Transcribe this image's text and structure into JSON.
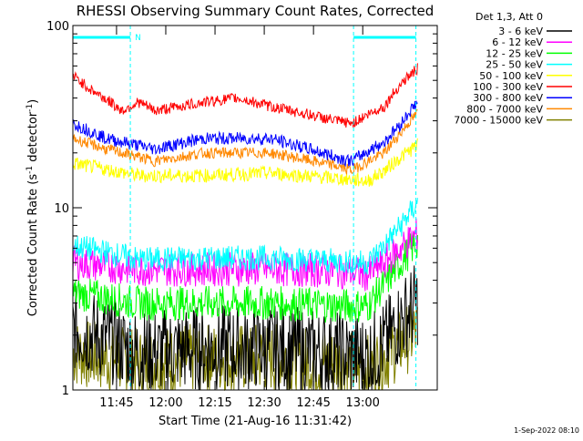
{
  "chart_data": {
    "type": "line",
    "title": "RHESSI Observing Summary Count Rates, Corrected",
    "xlabel": "Start Time (21-Aug-16 11:31:42)",
    "ylabel": "Corrected Count Rate (s",
    "ylabel_sup1": "-1",
    "ylabel_mid": " detector",
    "ylabel_sup2": "-1",
    "ylabel_end": ")",
    "yscale": "log",
    "ylim": [
      1,
      100
    ],
    "yticks": [
      {
        "value": 1,
        "label": "1"
      },
      {
        "value": 10,
        "label": "10"
      },
      {
        "value": 100,
        "label": "100"
      }
    ],
    "xlim_minutes": [
      0,
      111
    ],
    "xticks": [
      {
        "minute": 13.3,
        "label": "11:45"
      },
      {
        "minute": 28.3,
        "label": "12:00"
      },
      {
        "minute": 43.3,
        "label": "12:15"
      },
      {
        "minute": 58.3,
        "label": "12:30"
      },
      {
        "minute": 73.3,
        "label": "12:45"
      },
      {
        "minute": 88.3,
        "label": "13:00"
      }
    ],
    "legend_header": "Det 1,3, Att 0",
    "legend_position": "right",
    "flag_bar_color": "#00ffff",
    "flag_label": "N",
    "flag_bars": [
      [
        0,
        17.5
      ],
      [
        85.5,
        104.5
      ]
    ],
    "night_lines_minutes": [
      17.5,
      85.5,
      104.5
    ],
    "footer_text": "1-Sep-2022 08:10",
    "series": [
      {
        "name": "3 - 6 keV",
        "color": "#000000",
        "x": [
          0,
          20,
          40,
          60,
          80,
          90,
          95,
          100,
          105
        ],
        "y": [
          2.2,
          1.6,
          1.7,
          1.7,
          1.6,
          1.5,
          1.8,
          2.4,
          3.0
        ]
      },
      {
        "name": "6 - 12 keV",
        "color": "#ff00ff",
        "x": [
          0,
          20,
          40,
          60,
          80,
          90,
          95,
          100,
          105
        ],
        "y": [
          5.0,
          4.6,
          4.6,
          4.6,
          4.5,
          4.3,
          5.0,
          6.0,
          7.2
        ]
      },
      {
        "name": "12 - 25 keV",
        "color": "#00ff00",
        "x": [
          0,
          20,
          40,
          60,
          80,
          90,
          95,
          100,
          105
        ],
        "y": [
          3.4,
          3.0,
          3.0,
          3.0,
          2.9,
          2.9,
          3.8,
          5.0,
          6.5
        ]
      },
      {
        "name": "25 - 50 keV",
        "color": "#00ffff",
        "x": [
          0,
          20,
          40,
          60,
          80,
          90,
          95,
          100,
          105
        ],
        "y": [
          6.2,
          5.2,
          5.3,
          5.3,
          5.1,
          5.0,
          6.2,
          8.0,
          10.5
        ]
      },
      {
        "name": "50 - 100 keV",
        "color": "#ffff00",
        "x": [
          0,
          20,
          40,
          60,
          80,
          90,
          95,
          100,
          105
        ],
        "y": [
          17.5,
          15.0,
          15.0,
          15.5,
          14.5,
          14.0,
          16.0,
          19.0,
          22.0
        ]
      },
      {
        "name": "100 - 300 keV",
        "color": "#ff0000",
        "x": [
          0,
          5,
          15,
          20,
          25,
          40,
          50,
          60,
          80,
          85,
          95,
          100,
          105
        ],
        "y": [
          53,
          45,
          34,
          38,
          34,
          38,
          40,
          36,
          30,
          29,
          36,
          48,
          58
        ]
      },
      {
        "name": "300 - 800 keV",
        "color": "#0000ff",
        "x": [
          0,
          10,
          20,
          25,
          40,
          60,
          80,
          85,
          95,
          100,
          105
        ],
        "y": [
          29,
          24,
          22,
          21,
          24,
          24,
          19,
          18,
          23,
          29,
          38
        ]
      },
      {
        "name": "800 - 7000 keV",
        "color": "#ff8800",
        "x": [
          0,
          10,
          20,
          25,
          40,
          60,
          80,
          85,
          95,
          100,
          105
        ],
        "y": [
          24,
          21,
          19,
          18,
          20,
          20,
          17,
          16,
          20,
          26,
          33
        ]
      },
      {
        "name": "7000 - 15000 keV",
        "color": "#808000",
        "x": [
          0,
          20,
          40,
          60,
          80,
          90,
          95,
          100,
          105
        ],
        "y": [
          1.6,
          1.4,
          1.5,
          1.5,
          1.4,
          1.3,
          1.5,
          1.8,
          2.1
        ]
      }
    ]
  }
}
